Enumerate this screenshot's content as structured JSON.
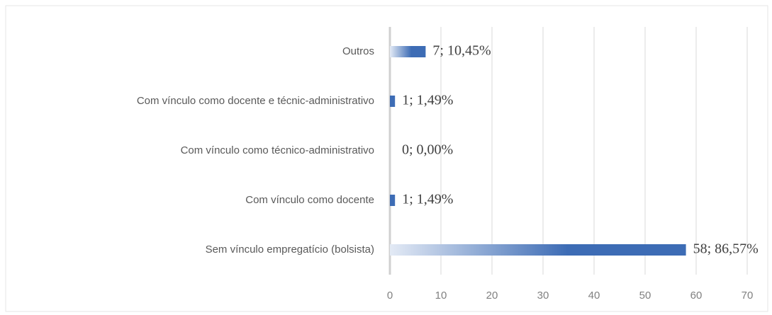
{
  "chart_data": {
    "type": "hbar",
    "categories": [
      "Outros",
      "Com vínculo como docente e técnic-administrativo",
      "Com vínculo como técnico-administrativo",
      "Com vínculo como docente",
      "Sem vínculo empregatício (bolsista)"
    ],
    "values": [
      7,
      1,
      0,
      1,
      58
    ],
    "value_labels": [
      "7; 10,45%",
      "1; 1,49%",
      "0; 0,00%",
      "1; 1,49%",
      "58; 86,57%"
    ],
    "color": "#3d6cb5",
    "xlim": [
      0,
      70
    ],
    "xticks": [
      0,
      10,
      20,
      30,
      40,
      50,
      60,
      70
    ],
    "grid": true
  }
}
